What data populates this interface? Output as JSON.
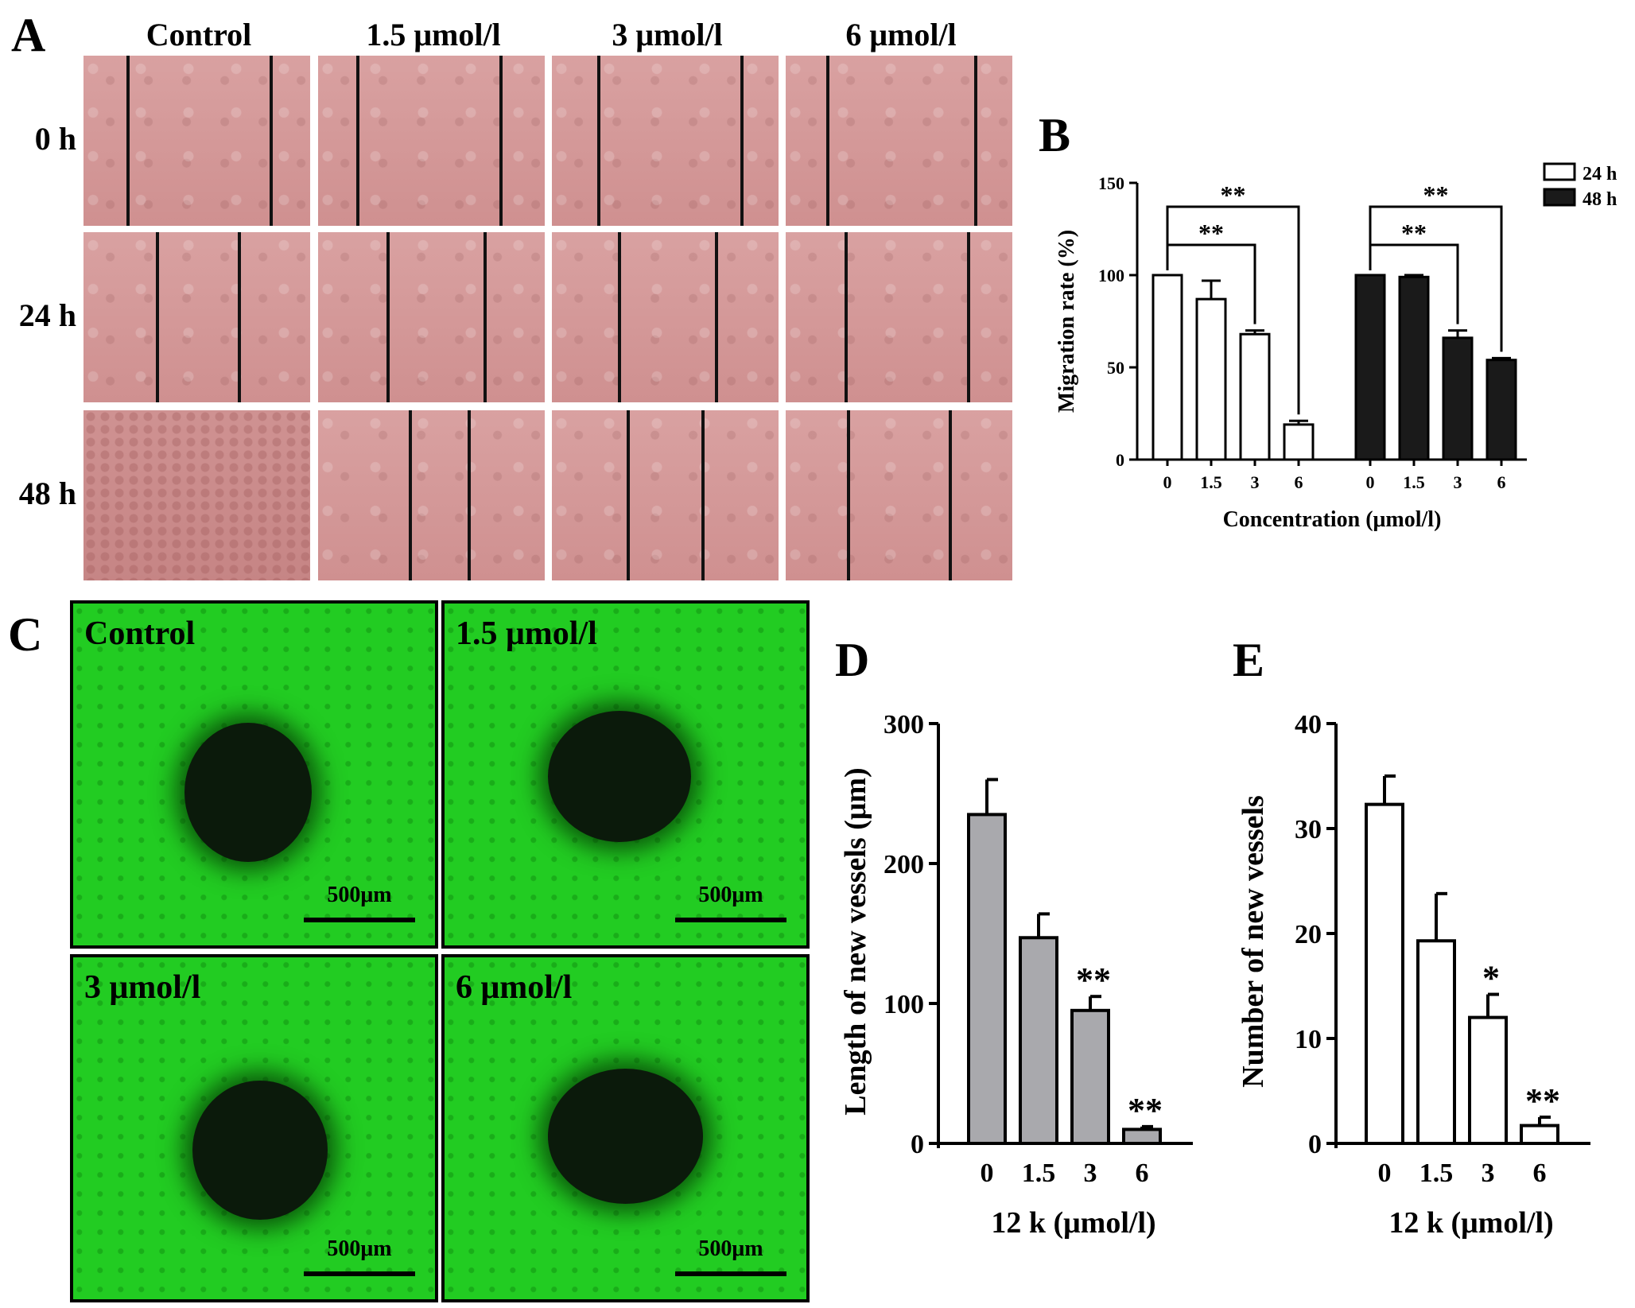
{
  "panels": {
    "A": {
      "letter": "A",
      "columns": [
        "Control",
        "1.5 μmol/l",
        "3 μmol/l",
        "6 μmol/l"
      ],
      "rows": [
        "0 h",
        "24 h",
        "48 h"
      ]
    },
    "C": {
      "letter": "C",
      "labels": [
        "Control",
        "1.5 μmol/l",
        "3 μmol/l",
        "6 μmol/l"
      ],
      "scale_bar": "500μm"
    }
  },
  "chart_data": [
    {
      "panel": "B",
      "type": "bar",
      "categories": [
        "0",
        "1.5",
        "3",
        "6"
      ],
      "xlabel": "Concentration (μmol/l)",
      "ylabel": "Migration rate (%)",
      "ylim": [
        0,
        150
      ],
      "yticks": [
        0,
        50,
        100,
        150
      ],
      "legend_position": "top-right",
      "series": [
        {
          "name": "24 h",
          "values": [
            100,
            87,
            68,
            19
          ],
          "errors": [
            0,
            10,
            2,
            2
          ],
          "fill": "#ffffff"
        },
        {
          "name": "48 h",
          "values": [
            100,
            99,
            66,
            54
          ],
          "errors": [
            0,
            1,
            4,
            1
          ],
          "fill": "#1a1a1a"
        }
      ],
      "significance": [
        {
          "series": 0,
          "from": 0,
          "to": 2,
          "label": "**"
        },
        {
          "series": 0,
          "from": 0,
          "to": 3,
          "label": "**"
        },
        {
          "series": 1,
          "from": 0,
          "to": 2,
          "label": "**"
        },
        {
          "series": 1,
          "from": 0,
          "to": 3,
          "label": "**"
        }
      ]
    },
    {
      "panel": "D",
      "type": "bar",
      "categories": [
        "0",
        "1.5",
        "3",
        "6"
      ],
      "values": [
        235,
        147,
        95,
        10
      ],
      "errors": [
        25,
        17,
        10,
        2
      ],
      "annotations": [
        "",
        "",
        "**",
        "**"
      ],
      "xlabel": "12 k (μmol/l)",
      "ylabel": "Length of new vessels (μm)",
      "ylim": [
        0,
        300
      ],
      "yticks": [
        0,
        100,
        200,
        300
      ],
      "fill": "#a9a9ad"
    },
    {
      "panel": "E",
      "type": "bar",
      "categories": [
        "0",
        "1.5",
        "3",
        "6"
      ],
      "values": [
        32.3,
        19.3,
        12,
        1.7
      ],
      "errors": [
        2.7,
        4.5,
        2.2,
        0.8
      ],
      "annotations": [
        "",
        "",
        "*",
        "**"
      ],
      "xlabel": "12 k (μmol/l)",
      "ylabel": "Number of new vessels",
      "ylim": [
        0,
        40
      ],
      "yticks": [
        0,
        10,
        20,
        30,
        40
      ],
      "fill": "#ffffff"
    }
  ]
}
